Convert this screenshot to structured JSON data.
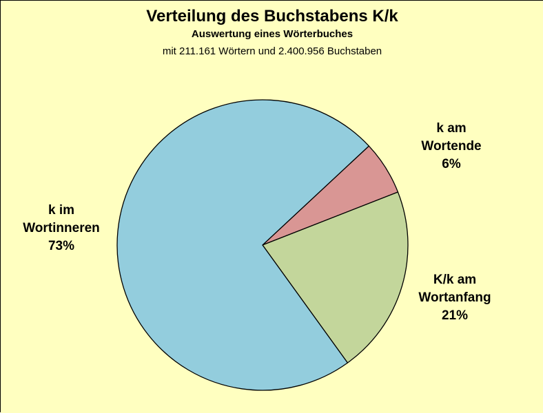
{
  "chart_data": {
    "type": "pie",
    "title": "Verteilung des Buchstabens K/k",
    "subtitle": "Auswertung eines Wörterbuches",
    "subtitle2": "mit 211.161 Wörtern und 2.400.956 Buchstaben",
    "slices": [
      {
        "label_lines": [
          "k am",
          "Wortende",
          "6%"
        ],
        "value": 6,
        "color": "#d99694"
      },
      {
        "label_lines": [
          "K/k am",
          "Wortanfang",
          "21%"
        ],
        "value": 21,
        "color": "#c3d69b"
      },
      {
        "label_lines": [
          "k im",
          "Wortinneren",
          "73%"
        ],
        "value": 73,
        "color": "#93cddd"
      }
    ],
    "background_color": "#ffffc0",
    "outline_color": "#000000"
  }
}
